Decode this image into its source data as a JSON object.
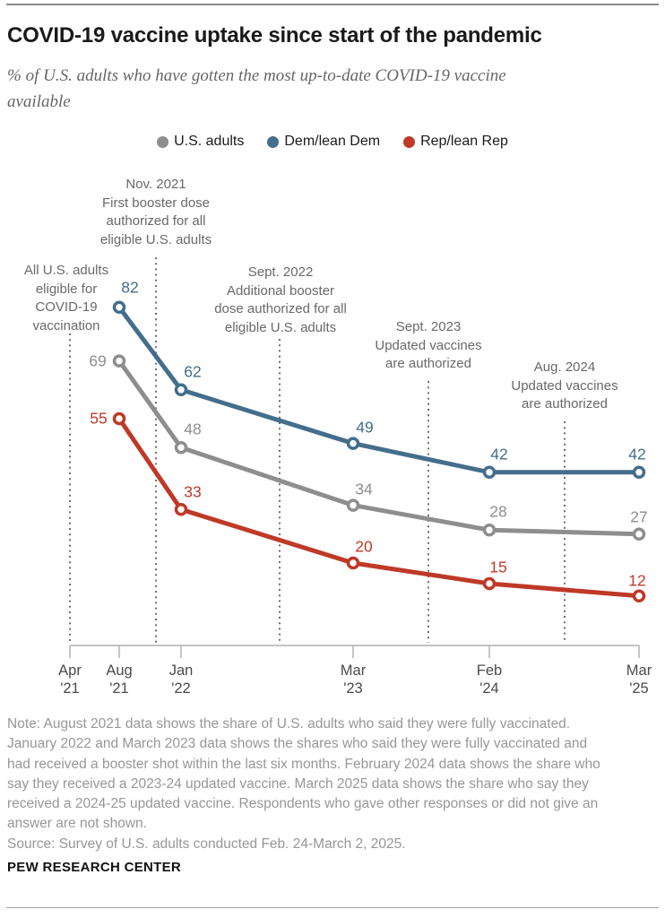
{
  "header": {
    "title": "COVID-19 vaccine uptake since start of the pandemic",
    "subtitle": "% of U.S. adults who have gotten the most up-to-date COVID-19 vaccine available"
  },
  "legend": [
    {
      "label": "U.S. adults",
      "color": "#8e8e8e"
    },
    {
      "label": "Dem/lean Dem",
      "color": "#436e8c"
    },
    {
      "label": "Rep/lean Rep",
      "color": "#bf3927"
    }
  ],
  "chart_data": {
    "type": "line",
    "title": "COVID-19 vaccine uptake since start of the pandemic",
    "subtitle": "% of U.S. adults who have gotten the most up-to-date COVID-19 vaccine available",
    "x": [
      "Aug 2021",
      "Jan 2022",
      "Mar 2023",
      "Feb 2024",
      "Mar 2025"
    ],
    "x_tick_labels": [
      "Apr\n'21",
      "Aug\n'21",
      "Jan\n'22",
      "Mar\n'23",
      "Feb\n'24",
      "Mar\n'25"
    ],
    "ylim": [
      0,
      90
    ],
    "grid": false,
    "legend_position": "top-center",
    "series": [
      {
        "name": "U.S. adults",
        "color": "#8e8e8e",
        "values": [
          69,
          48,
          34,
          28,
          27
        ]
      },
      {
        "name": "Dem/lean Dem",
        "color": "#436e8c",
        "values": [
          82,
          62,
          49,
          42,
          42
        ]
      },
      {
        "name": "Rep/lean Rep",
        "color": "#bf3927",
        "values": [
          55,
          33,
          20,
          15,
          12
        ]
      }
    ],
    "annotations": [
      {
        "x": "Apr 2021",
        "text": "All U.S. adults\neligible for\nCOVID-19\nvaccination"
      },
      {
        "x": "Nov 2021",
        "text": "Nov. 2021\nFirst booster dose\nauthorized for all\neligible U.S. adults"
      },
      {
        "x": "Sept 2022",
        "text": "Sept. 2022\nAdditional booster\ndose authorized for all\neligible U.S. adults"
      },
      {
        "x": "Sept 2023",
        "text": "Sept. 2023\nUpdated vaccines\nare authorized"
      },
      {
        "x": "Aug 2024",
        "text": "Aug. 2024\nUpdated vaccines\nare authorized"
      }
    ]
  },
  "notes": {
    "note": "Note: August 2021 data shows the share of U.S. adults who said they were fully vaccinated. January 2022 and March 2023 data shows the shares who said they were fully vaccinated and had received a booster shot within the last six months. February 2024 data shows the share who say they received a 2023-24 updated vaccine. March 2025 data shows the share who say they received a 2024-25 updated vaccine. Respondents who gave other responses or did not give an answer are not shown.",
    "source": "Source: Survey of U.S. adults conducted Feb. 24-March 2, 2025."
  },
  "footer": {
    "brand": "PEW RESEARCH CENTER"
  }
}
